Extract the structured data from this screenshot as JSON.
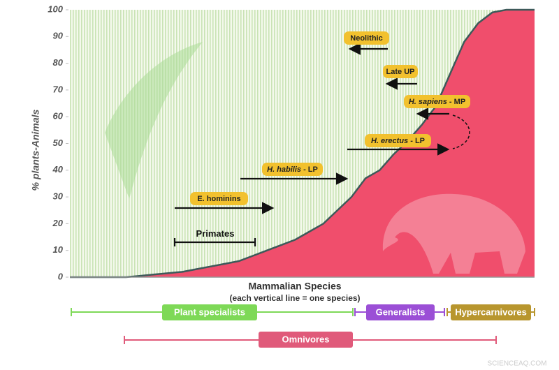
{
  "chart_data": {
    "type": "area",
    "y_label": "% plants-Animals",
    "x_label": "Mammalian Species",
    "x_sublabel": "(each vertical line = one species)",
    "ylim": [
      0,
      100
    ],
    "yticks": [
      0,
      10,
      20,
      30,
      40,
      50,
      60,
      70,
      80,
      90,
      100
    ],
    "color": "#f04e6c",
    "values": [
      0,
      0,
      0,
      0,
      0,
      0.5,
      1,
      1.5,
      2,
      3,
      4,
      5,
      6,
      8,
      10,
      12,
      14,
      17,
      20,
      25,
      30,
      37,
      40,
      46,
      51,
      57,
      64,
      76,
      88,
      95,
      99,
      100,
      100,
      100
    ],
    "annotations": [
      {
        "text": "Neolithic"
      },
      {
        "text": "Late UP"
      },
      {
        "italic": "H. sapiens",
        "text": " - MP"
      },
      {
        "italic": "H. erectus",
        "text": " - LP"
      },
      {
        "italic": "H. habilis",
        "text": " - LP"
      },
      {
        "text": "E. hominins"
      },
      {
        "text": "Primates"
      }
    ],
    "groups": [
      "Plant specialists",
      "Generalists",
      "Hypercarnivores",
      "Omnivores"
    ],
    "watermark": "SCIENCEAQ.COM"
  }
}
